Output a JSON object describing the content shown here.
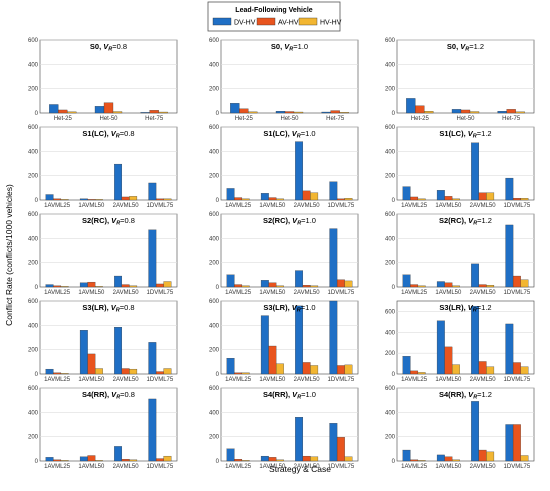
{
  "legend": {
    "title": "Lead-Following Vehicle",
    "items": [
      {
        "label": "DV-HV",
        "color": "#1f6fc5"
      },
      {
        "label": "AV-HV",
        "color": "#e8541e"
      },
      {
        "label": "HV-HV",
        "color": "#f2b632"
      }
    ]
  },
  "ylabel": "Conflict Rate (conflicts/1000 vehicles)",
  "xlabel": "Strategy & Case",
  "chart_data": [
    {
      "type": "bar",
      "title": "S0, V_R=0.8",
      "title_main": "S0, ",
      "title_sub": "=0.8",
      "categories": [
        "Het-25",
        "Het-50",
        "Het-75"
      ],
      "ylim": [
        0,
        600
      ],
      "yticks": [
        0,
        200,
        400,
        600
      ],
      "series": [
        {
          "name": "DV-HV",
          "values": [
            70,
            55,
            5
          ]
        },
        {
          "name": "AV-HV",
          "values": [
            25,
            85,
            22
          ]
        },
        {
          "name": "HV-HV",
          "values": [
            10,
            12,
            8
          ]
        }
      ]
    },
    {
      "type": "bar",
      "title": "S0, V_R=1.0",
      "title_main": "S0, ",
      "title_sub": "=1.0",
      "categories": [
        "Het-25",
        "Het-50",
        "Het-75"
      ],
      "ylim": [
        0,
        600
      ],
      "yticks": [
        0,
        200,
        400,
        600
      ],
      "series": [
        {
          "name": "DV-HV",
          "values": [
            80,
            15,
            8
          ]
        },
        {
          "name": "AV-HV",
          "values": [
            35,
            12,
            20
          ]
        },
        {
          "name": "HV-HV",
          "values": [
            10,
            8,
            6
          ]
        }
      ]
    },
    {
      "type": "bar",
      "title": "S0, V_R=1.2",
      "title_main": "S0, ",
      "title_sub": "=1.2",
      "categories": [
        "Het-25",
        "Het-50",
        "Het-75"
      ],
      "ylim": [
        0,
        600
      ],
      "yticks": [
        0,
        200,
        400,
        600
      ],
      "series": [
        {
          "name": "DV-HV",
          "values": [
            120,
            30,
            15
          ]
        },
        {
          "name": "AV-HV",
          "values": [
            60,
            25,
            30
          ]
        },
        {
          "name": "HV-HV",
          "values": [
            15,
            12,
            10
          ]
        }
      ]
    },
    {
      "type": "bar",
      "title": "S1(LC), V_R=0.8",
      "title_main": "S1(LC), ",
      "title_sub": "=0.8",
      "categories": [
        "1AVML25",
        "1AVML50",
        "2AVML50",
        "1DVML75"
      ],
      "ylim": [
        0,
        600
      ],
      "yticks": [
        0,
        200,
        400,
        600
      ],
      "series": [
        {
          "name": "DV-HV",
          "values": [
            45,
            10,
            295,
            140
          ]
        },
        {
          "name": "AV-HV",
          "values": [
            10,
            5,
            25,
            10
          ]
        },
        {
          "name": "HV-HV",
          "values": [
            5,
            5,
            30,
            10
          ]
        }
      ]
    },
    {
      "type": "bar",
      "title": "S1(LC), V_R=1.0",
      "title_main": "S1(LC), ",
      "title_sub": "=1.0",
      "categories": [
        "1AVML25",
        "1AVML50",
        "2AVML50",
        "1DVML75"
      ],
      "ylim": [
        0,
        600
      ],
      "yticks": [
        0,
        200,
        400,
        600
      ],
      "series": [
        {
          "name": "DV-HV",
          "values": [
            95,
            55,
            480,
            150
          ]
        },
        {
          "name": "AV-HV",
          "values": [
            20,
            20,
            75,
            10
          ]
        },
        {
          "name": "HV-HV",
          "values": [
            10,
            10,
            60,
            15
          ]
        }
      ]
    },
    {
      "type": "bar",
      "title": "S1(LC), V_R=1.2",
      "title_main": "S1(LC), ",
      "title_sub": "=1.2",
      "categories": [
        "1AVML25",
        "1AVML50",
        "2AVML50",
        "1DVML75"
      ],
      "ylim": [
        0,
        600
      ],
      "yticks": [
        0,
        200,
        400,
        600
      ],
      "series": [
        {
          "name": "DV-HV",
          "values": [
            110,
            80,
            470,
            180
          ]
        },
        {
          "name": "AV-HV",
          "values": [
            25,
            30,
            60,
            15
          ]
        },
        {
          "name": "HV-HV",
          "values": [
            10,
            10,
            60,
            15
          ]
        }
      ]
    },
    {
      "type": "bar",
      "title": "S2(RC), V_R=0.8",
      "title_main": "S2(RC), ",
      "title_sub": "=0.8",
      "categories": [
        "1AVML25",
        "1AVML50",
        "2AVML50",
        "1DVML75"
      ],
      "ylim": [
        0,
        600
      ],
      "yticks": [
        0,
        200,
        400,
        600
      ],
      "series": [
        {
          "name": "DV-HV",
          "values": [
            20,
            35,
            90,
            470
          ]
        },
        {
          "name": "AV-HV",
          "values": [
            10,
            40,
            20,
            25
          ]
        },
        {
          "name": "HV-HV",
          "values": [
            5,
            5,
            10,
            45
          ]
        }
      ]
    },
    {
      "type": "bar",
      "title": "S2(RC), V_R=1.0",
      "title_main": "S2(RC), ",
      "title_sub": "=1.0",
      "categories": [
        "1AVML25",
        "1AVML50",
        "2AVML50",
        "1DVML75"
      ],
      "ylim": [
        0,
        600
      ],
      "yticks": [
        0,
        200,
        400,
        600
      ],
      "series": [
        {
          "name": "DV-HV",
          "values": [
            100,
            55,
            135,
            480
          ]
        },
        {
          "name": "AV-HV",
          "values": [
            20,
            35,
            15,
            60
          ]
        },
        {
          "name": "HV-HV",
          "values": [
            10,
            10,
            10,
            50
          ]
        }
      ]
    },
    {
      "type": "bar",
      "title": "S2(RC), V_R=1.2",
      "title_main": "S2(RC), ",
      "title_sub": "=1.2",
      "categories": [
        "1AVML25",
        "1AVML50",
        "2AVML50",
        "1DVML75"
      ],
      "ylim": [
        0,
        600
      ],
      "yticks": [
        0,
        200,
        400,
        600
      ],
      "series": [
        {
          "name": "DV-HV",
          "values": [
            100,
            45,
            190,
            510
          ]
        },
        {
          "name": "AV-HV",
          "values": [
            20,
            35,
            20,
            90
          ]
        },
        {
          "name": "HV-HV",
          "values": [
            10,
            10,
            15,
            60
          ]
        }
      ]
    },
    {
      "type": "bar",
      "title": "S3(LR), V_R=0.8",
      "title_main": "S3(LR), ",
      "title_sub": "=0.8",
      "categories": [
        "1AVML25",
        "1AVML50",
        "2AVML50",
        "1DVML75"
      ],
      "ylim": [
        0,
        600
      ],
      "yticks": [
        0,
        200,
        400,
        600
      ],
      "series": [
        {
          "name": "DV-HV",
          "values": [
            40,
            360,
            385,
            260
          ]
        },
        {
          "name": "AV-HV",
          "values": [
            10,
            165,
            45,
            20
          ]
        },
        {
          "name": "HV-HV",
          "values": [
            5,
            45,
            40,
            45
          ]
        }
      ]
    },
    {
      "type": "bar",
      "title": "S3(LR), V_R=1.0",
      "title_main": "S3(LR), ",
      "title_sub": "=1.0",
      "categories": [
        "1AVML25",
        "1AVML50",
        "2AVML50",
        "1DVML75"
      ],
      "ylim": [
        0,
        600
      ],
      "yticks": [
        0,
        200,
        400,
        600
      ],
      "series": [
        {
          "name": "DV-HV",
          "values": [
            130,
            480,
            560,
            600
          ]
        },
        {
          "name": "AV-HV",
          "values": [
            10,
            230,
            95,
            70
          ]
        },
        {
          "name": "HV-HV",
          "values": [
            10,
            85,
            70,
            75
          ]
        }
      ]
    },
    {
      "type": "bar",
      "title": "S3(LR), V_R=1.2",
      "title_main": "S3(LR), ",
      "title_sub": "=1.2",
      "categories": [
        "1AVML25",
        "1AVML50",
        "2AVML50",
        "1DVML75"
      ],
      "ylim": [
        0,
        700
      ],
      "yticks": [
        0,
        200,
        400,
        600
      ],
      "series": [
        {
          "name": "DV-HV",
          "values": [
            170,
            510,
            650,
            480
          ]
        },
        {
          "name": "AV-HV",
          "values": [
            30,
            260,
            120,
            110
          ]
        },
        {
          "name": "HV-HV",
          "values": [
            15,
            90,
            70,
            70
          ]
        }
      ]
    },
    {
      "type": "bar",
      "title": "S4(RR), V_R=0.8",
      "title_main": "S4(RR), ",
      "title_sub": "=0.8",
      "categories": [
        "1AVML25",
        "1AVML50",
        "2AVML50",
        "1DVML75"
      ],
      "ylim": [
        0,
        600
      ],
      "yticks": [
        0,
        200,
        400,
        600
      ],
      "series": [
        {
          "name": "DV-HV",
          "values": [
            30,
            35,
            120,
            510
          ]
        },
        {
          "name": "AV-HV",
          "values": [
            10,
            45,
            15,
            20
          ]
        },
        {
          "name": "HV-HV",
          "values": [
            5,
            5,
            10,
            40
          ]
        }
      ]
    },
    {
      "type": "bar",
      "title": "S4(RR), V_R=1.0",
      "title_main": "S4(RR), ",
      "title_sub": "=1.0",
      "categories": [
        "1AVML25",
        "1AVML50",
        "2AVML50",
        "1DVML75"
      ],
      "ylim": [
        0,
        600
      ],
      "yticks": [
        0,
        200,
        400,
        600
      ],
      "series": [
        {
          "name": "DV-HV",
          "values": [
            100,
            40,
            360,
            310
          ]
        },
        {
          "name": "AV-HV",
          "values": [
            15,
            30,
            40,
            195
          ]
        },
        {
          "name": "HV-HV",
          "values": [
            5,
            10,
            35,
            35
          ]
        }
      ]
    },
    {
      "type": "bar",
      "title": "S4(RR), V_R=1.2",
      "title_main": "S4(RR), ",
      "title_sub": "=1.2",
      "categories": [
        "1AVML25",
        "1AVML50",
        "2AVML50",
        "1DVML75"
      ],
      "ylim": [
        0,
        600
      ],
      "yticks": [
        0,
        200,
        400,
        600
      ],
      "series": [
        {
          "name": "DV-HV",
          "values": [
            90,
            50,
            490,
            300
          ]
        },
        {
          "name": "AV-HV",
          "values": [
            10,
            35,
            90,
            300
          ]
        },
        {
          "name": "HV-HV",
          "values": [
            5,
            10,
            75,
            45
          ]
        }
      ]
    }
  ]
}
